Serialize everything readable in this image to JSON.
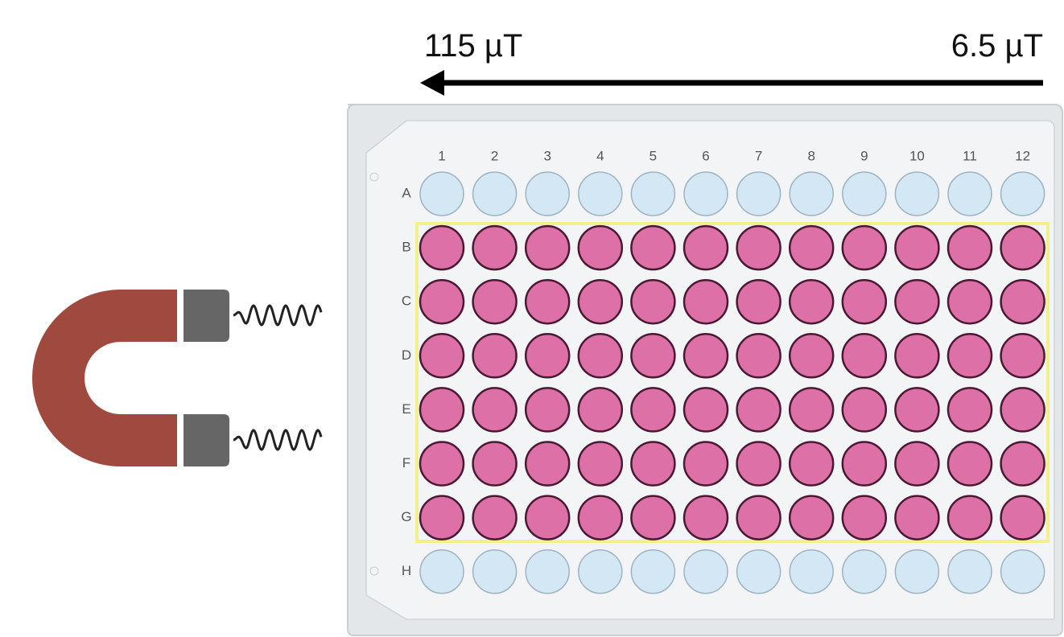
{
  "field_labels": {
    "high": "115 µT",
    "low": "6.5 µT"
  },
  "plate": {
    "columns": [
      "1",
      "2",
      "3",
      "4",
      "5",
      "6",
      "7",
      "8",
      "9",
      "10",
      "11",
      "12"
    ],
    "rows": [
      "A",
      "B",
      "C",
      "D",
      "E",
      "F",
      "G",
      "H"
    ]
  }
}
